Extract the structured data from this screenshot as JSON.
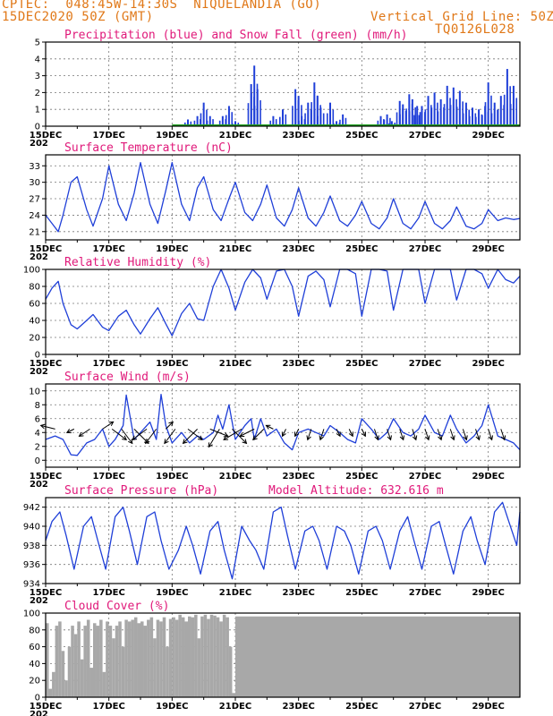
{
  "header": {
    "line1_left": "CPTEC:  048:45W-14:30S  NIQUELANDIA (GO)",
    "line2_left": "15DEC2020 50Z (GMT)",
    "line1_right": "Vertical Grid Line: 50Z",
    "line2_right": "TQ0126L028"
  },
  "colors": {
    "series": "#1f3fd8",
    "snow": "#1fa01f",
    "title": "#e0197a",
    "header": "#e07818",
    "cloud": "#a8a8a8"
  },
  "x_axis": {
    "labels": [
      "15DEC",
      "17DEC",
      "19DEC",
      "21DEC",
      "23DEC",
      "25DEC",
      "27DEC",
      "29DEC"
    ],
    "year_fragment": "202",
    "start_day": 15,
    "end_day": 30
  },
  "chart_data": [
    {
      "id": "precip",
      "type": "bar",
      "title": "Precipitation (blue) and Snow Fall (green) (mm/h)",
      "ylim": [
        0,
        5
      ],
      "yticks": [
        0,
        1,
        2,
        3,
        4,
        5
      ],
      "x_days": [
        19.5,
        19.8,
        20.0,
        20.2,
        20.6,
        20.8,
        21.0,
        21.5,
        21.6,
        21.7,
        22.2,
        22.5,
        22.9,
        23.0,
        23.1,
        23.3,
        23.5,
        23.6,
        23.7,
        24.0,
        24.2,
        24.4,
        25.6,
        25.8,
        25.95,
        26.2,
        26.3,
        26.5,
        26.6,
        26.75,
        26.9,
        27.1,
        27.3,
        27.5,
        27.7,
        27.9,
        28.1,
        28.3,
        28.5,
        28.7,
        28.9,
        29.0,
        29.2,
        29.4,
        29.6,
        29.8
      ],
      "values": [
        0.4,
        0.6,
        1.4,
        0.6,
        0.6,
        1.2,
        0.3,
        2.5,
        3.6,
        2.2,
        0.6,
        1.0,
        2.2,
        1.8,
        0.6,
        1.4,
        2.6,
        1.8,
        1.1,
        1.4,
        0.3,
        0.7,
        0.6,
        0.7,
        0.3,
        1.5,
        1.3,
        1.9,
        1.6,
        1.2,
        1.2,
        1.8,
        2.0,
        1.6,
        2.4,
        2.3,
        2.1,
        1.4,
        1.1,
        1.0,
        1.2,
        2.6,
        1.4,
        1.8,
        3.4,
        2.4
      ],
      "snow": 0
    },
    {
      "id": "temp",
      "type": "line",
      "title": "Surface Temperature (nC)",
      "ylim": [
        19.5,
        35
      ],
      "yticks": [
        21,
        24,
        27,
        30,
        33
      ],
      "x_days": [
        15.0,
        15.2,
        15.4,
        15.55,
        15.8,
        16.0,
        16.3,
        16.5,
        16.8,
        17.0,
        17.3,
        17.55,
        17.8,
        18.0,
        18.3,
        18.55,
        18.8,
        19.0,
        19.3,
        19.55,
        19.8,
        20.0,
        20.3,
        20.55,
        20.8,
        21.0,
        21.3,
        21.55,
        21.8,
        22.0,
        22.3,
        22.55,
        22.8,
        23.0,
        23.3,
        23.55,
        23.8,
        24.0,
        24.3,
        24.55,
        24.8,
        25.0,
        25.3,
        25.55,
        25.8,
        26.0,
        26.3,
        26.55,
        26.8,
        27.0,
        27.3,
        27.55,
        27.8,
        28.0,
        28.3,
        28.55,
        28.8,
        29.0,
        29.3,
        29.55,
        29.8,
        30.0
      ],
      "values": [
        24,
        22.5,
        21,
        24,
        30,
        31,
        25,
        22,
        27,
        33,
        26,
        23,
        28,
        33.6,
        26,
        22.5,
        28.5,
        33.6,
        26,
        23,
        29,
        31,
        25,
        23,
        27,
        30,
        24.5,
        23,
        26,
        29.5,
        23.5,
        22,
        25,
        29,
        23.5,
        22,
        24.5,
        27.5,
        23,
        22,
        24,
        26.5,
        22.5,
        21.5,
        23.5,
        27,
        22.5,
        21.5,
        23.5,
        26.5,
        22.5,
        21.5,
        23,
        25.5,
        22,
        21.5,
        22.5,
        25,
        23,
        23.5,
        23.2,
        23.4
      ]
    },
    {
      "id": "rh",
      "type": "line",
      "title": "Relative Humidity (%)",
      "ylim": [
        0,
        100
      ],
      "yticks": [
        0,
        20,
        40,
        60,
        80,
        100
      ],
      "x_days": [
        15.0,
        15.2,
        15.4,
        15.55,
        15.8,
        16.0,
        16.3,
        16.5,
        16.8,
        17.0,
        17.3,
        17.55,
        17.8,
        18.0,
        18.3,
        18.55,
        18.8,
        19.0,
        19.3,
        19.55,
        19.8,
        20.0,
        20.3,
        20.55,
        20.8,
        21.0,
        21.3,
        21.55,
        21.8,
        22.0,
        22.3,
        22.55,
        22.8,
        23.0,
        23.3,
        23.55,
        23.8,
        24.0,
        24.3,
        24.55,
        24.8,
        25.0,
        25.3,
        25.55,
        25.8,
        26.0,
        26.3,
        26.55,
        26.8,
        27.0,
        27.3,
        27.55,
        27.8,
        28.0,
        28.3,
        28.55,
        28.8,
        29.0,
        29.3,
        29.55,
        29.8,
        30.0
      ],
      "values": [
        65,
        78,
        86,
        60,
        35,
        30,
        40,
        47,
        32,
        28,
        45,
        52,
        35,
        24,
        42,
        55,
        36,
        22,
        48,
        60,
        42,
        40,
        80,
        100,
        78,
        52,
        85,
        100,
        90,
        65,
        98,
        100,
        80,
        45,
        92,
        98,
        88,
        56,
        100,
        100,
        95,
        45,
        100,
        100,
        98,
        52,
        100,
        100,
        100,
        60,
        100,
        100,
        100,
        64,
        100,
        100,
        95,
        78,
        100,
        88,
        84,
        92
      ]
    },
    {
      "id": "wind",
      "type": "line",
      "title": "Surface Wind (m/s)",
      "ylim": [
        -1,
        11
      ],
      "yticks": [
        0,
        2,
        4,
        6,
        8,
        10
      ],
      "x_days": [
        15.0,
        15.3,
        15.55,
        15.8,
        16.0,
        16.3,
        16.55,
        16.8,
        17.0,
        17.2,
        17.45,
        17.55,
        17.8,
        18.0,
        18.3,
        18.5,
        18.65,
        18.8,
        19.0,
        19.3,
        19.55,
        19.8,
        20.0,
        20.3,
        20.45,
        20.6,
        20.8,
        21.0,
        21.3,
        21.5,
        21.6,
        21.8,
        22.0,
        22.3,
        22.55,
        22.8,
        23.0,
        23.3,
        23.55,
        23.8,
        24.0,
        24.3,
        24.55,
        24.8,
        25.0,
        25.3,
        25.55,
        25.8,
        26.0,
        26.3,
        26.55,
        26.8,
        27.0,
        27.3,
        27.55,
        27.8,
        28.0,
        28.3,
        28.55,
        28.8,
        29.0,
        29.3,
        29.55,
        29.8,
        30.0
      ],
      "values": [
        3.0,
        3.5,
        3.0,
        0.8,
        0.7,
        2.5,
        3.0,
        4.5,
        2.0,
        3.0,
        5.0,
        9.4,
        3.0,
        4.0,
        5.5,
        3.0,
        9.5,
        5.0,
        2.5,
        4.0,
        2.5,
        3.5,
        3.0,
        4.0,
        6.5,
        4.5,
        8.0,
        3.0,
        5.0,
        6.0,
        3.0,
        6.0,
        3.5,
        4.5,
        2.5,
        1.5,
        4.0,
        4.5,
        4.0,
        3.5,
        5.0,
        4.0,
        3.0,
        2.5,
        6.0,
        4.5,
        3.0,
        4.0,
        6.0,
        4.0,
        3.5,
        4.5,
        6.5,
        4.0,
        3.5,
        6.5,
        4.5,
        2.5,
        3.5,
        5.0,
        8.0,
        3.5,
        3.0,
        2.5,
        1.5
      ],
      "vectors": {
        "x_days": [
          15.3,
          15.9,
          16.4,
          16.8,
          17.1,
          17.4,
          17.8,
          18.2,
          18.5,
          18.8,
          19.1,
          19.5,
          19.8,
          20.2,
          20.5,
          20.9,
          21.2,
          21.6,
          21.9,
          22.2,
          22.6,
          23.0,
          23.4,
          23.8,
          24.2,
          24.6,
          25.0,
          25.4,
          25.8,
          26.2,
          26.6,
          27.0,
          27.4,
          27.8,
          28.2,
          28.6,
          29.0,
          29.4
        ],
        "u": [
          -4,
          -2,
          -3,
          3,
          4,
          3,
          4,
          -4,
          -3,
          2,
          -3,
          4,
          -4,
          5,
          -3,
          4,
          -5,
          -4,
          -3,
          -2,
          -1,
          -1,
          -1,
          -1,
          1,
          1,
          1,
          1,
          1,
          1,
          1,
          1,
          1,
          1,
          1,
          1,
          1,
          1
        ],
        "v": [
          1,
          -1,
          -2,
          2,
          -3,
          -4,
          -4,
          -3,
          -4,
          2,
          -4,
          -3,
          -4,
          -2,
          -5,
          -4,
          -3,
          -2,
          -3,
          1,
          -2,
          -2,
          -3,
          -3,
          -2,
          -2,
          -2,
          -3,
          -3,
          -3,
          -3,
          -3,
          -3,
          -3,
          -3,
          -3,
          -3,
          -3
        ]
      }
    },
    {
      "id": "pressure",
      "type": "line",
      "title": "Surface Pressure (hPa)",
      "extra_label": "Model Altitude: 632.616 m",
      "ylim": [
        934,
        943
      ],
      "yticks": [
        934,
        936,
        938,
        940,
        942
      ],
      "x_days": [
        15.0,
        15.2,
        15.45,
        15.65,
        15.9,
        16.2,
        16.45,
        16.65,
        16.9,
        17.2,
        17.45,
        17.65,
        17.9,
        18.2,
        18.45,
        18.65,
        18.9,
        19.2,
        19.45,
        19.65,
        19.9,
        20.2,
        20.45,
        20.65,
        20.9,
        21.2,
        21.45,
        21.65,
        21.9,
        22.2,
        22.45,
        22.65,
        22.9,
        23.2,
        23.45,
        23.65,
        23.9,
        24.2,
        24.45,
        24.65,
        24.9,
        25.2,
        25.45,
        25.65,
        25.9,
        26.2,
        26.45,
        26.65,
        26.9,
        27.2,
        27.45,
        27.65,
        27.9,
        28.2,
        28.45,
        28.65,
        28.9,
        29.2,
        29.45,
        29.65,
        29.9,
        30.0
      ],
      "values": [
        938.5,
        940.5,
        941.5,
        939,
        935.5,
        940,
        941,
        938.5,
        935.5,
        941,
        942,
        939.5,
        936,
        941,
        941.5,
        938.5,
        935.5,
        937.5,
        940,
        938,
        935,
        939.5,
        940.5,
        937.5,
        934.5,
        940,
        938.5,
        937.5,
        935.5,
        941.5,
        942,
        939,
        935.5,
        939.5,
        940,
        938.5,
        935.5,
        940,
        939.5,
        938,
        935,
        939.5,
        940,
        938.5,
        935.5,
        939.5,
        941,
        938.5,
        935.5,
        940,
        940.5,
        938,
        935,
        939.5,
        941,
        938.5,
        936,
        941.5,
        942.5,
        940.5,
        938,
        941.5
      ]
    },
    {
      "id": "cloud",
      "type": "area",
      "title": "Cloud Cover (%)",
      "ylim": [
        0,
        100
      ],
      "yticks": [
        0,
        20,
        40,
        60,
        80,
        100
      ],
      "x_days": [
        15.0,
        15.1,
        15.2,
        15.3,
        15.4,
        15.5,
        15.6,
        15.7,
        15.8,
        15.9,
        16.0,
        16.1,
        16.2,
        16.3,
        16.4,
        16.5,
        16.6,
        16.7,
        16.8,
        16.9,
        17.0,
        17.1,
        17.2,
        17.3,
        17.4,
        17.5,
        17.6,
        17.7,
        17.8,
        17.9,
        18.0,
        18.1,
        18.2,
        18.3,
        18.4,
        18.5,
        18.6,
        18.7,
        18.8,
        18.9,
        19.0,
        19.1,
        19.2,
        19.3,
        19.4,
        19.5,
        19.6,
        19.7,
        19.8,
        19.9,
        20.0,
        20.1,
        20.2,
        20.3,
        20.4,
        20.5,
        20.6,
        20.7,
        20.8,
        20.9,
        21.0,
        30.0
      ],
      "values": [
        88,
        10,
        30,
        85,
        90,
        55,
        20,
        60,
        85,
        75,
        90,
        45,
        85,
        92,
        35,
        88,
        85,
        92,
        30,
        90,
        85,
        70,
        85,
        90,
        60,
        92,
        90,
        92,
        95,
        88,
        90,
        85,
        92,
        95,
        70,
        92,
        90,
        95,
        60,
        93,
        95,
        92,
        98,
        95,
        90,
        96,
        95,
        98,
        70,
        96,
        98,
        93,
        98,
        97,
        95,
        90,
        98,
        95,
        60,
        5,
        96,
        97
      ]
    }
  ]
}
